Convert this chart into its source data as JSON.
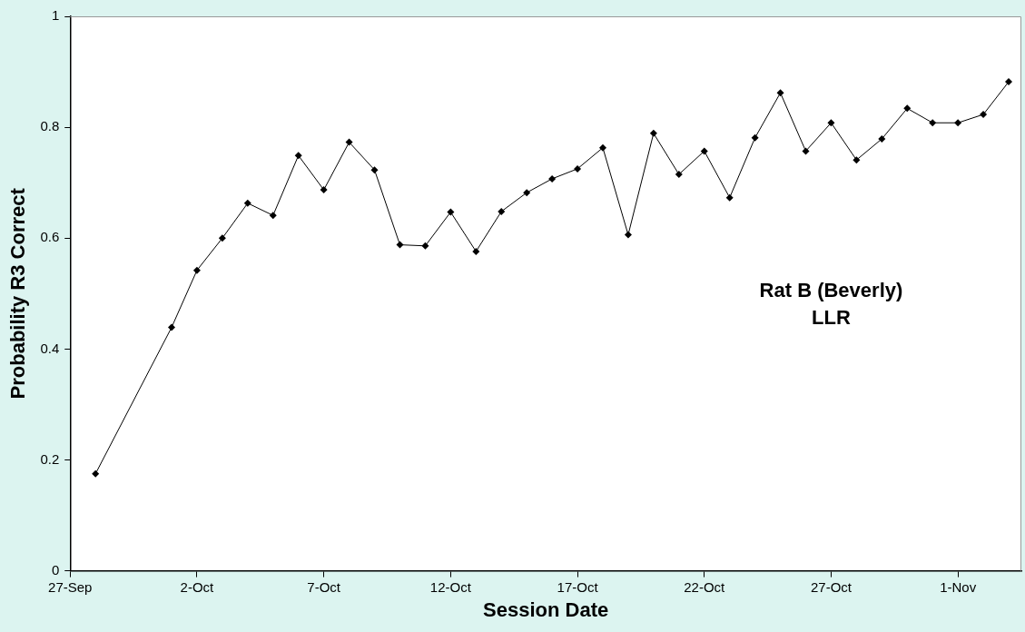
{
  "chart_data": {
    "type": "line",
    "xlabel": "Session Date",
    "ylabel": "Probability R3 Correct",
    "annotations": [
      "Rat B (Beverly)\nLLR"
    ],
    "x": [
      "--09-28",
      "--10-01",
      "--10-02",
      "--10-03",
      "--10-04",
      "--10-05",
      "--10-06",
      "--10-07",
      "--10-08",
      "--10-09",
      "--10-10",
      "--10-11",
      "--10-12",
      "--10-13",
      "--10-14",
      "--10-15",
      "--10-16",
      "--10-17",
      "--10-18",
      "--10-19",
      "--10-20",
      "--10-21",
      "--10-22",
      "--10-23",
      "--10-24",
      "--10-25",
      "--10-26",
      "--10-27",
      "--10-28",
      "--10-29",
      "--10-30",
      "--10-31",
      "--11-01",
      "--11-02",
      "--11-03"
    ],
    "series": [
      {
        "color": "#000000",
        "values": [
          0.175,
          0.439,
          0.542,
          0.6,
          0.663,
          0.641,
          0.749,
          0.687,
          0.773,
          0.723,
          0.588,
          0.586,
          0.647,
          0.576,
          0.648,
          0.682,
          0.707,
          0.725,
          0.763,
          0.606,
          0.789,
          0.715,
          0.757,
          0.673,
          0.781,
          0.862,
          0.757,
          0.808,
          0.741,
          0.779,
          0.834,
          0.808,
          0.808,
          0.823,
          0.882
        ]
      }
    ],
    "xlim": [
      "--09-27",
      "--11-03T12:00"
    ],
    "xticks": [
      {
        "value": "--09-27",
        "label": "27-Sep"
      },
      {
        "value": "--10-02",
        "label": "2-Oct"
      },
      {
        "value": "--10-07",
        "label": "7-Oct"
      },
      {
        "value": "--10-12",
        "label": "12-Oct"
      },
      {
        "value": "--10-17",
        "label": "17-Oct"
      },
      {
        "value": "--10-22",
        "label": "22-Oct"
      },
      {
        "value": "--10-27",
        "label": "27-Oct"
      },
      {
        "value": "--11-01",
        "label": "1-Nov"
      }
    ],
    "ylim": [
      0,
      1
    ],
    "yticks": [
      0,
      0.2,
      0.4,
      0.6,
      0.8,
      1
    ],
    "grid": false,
    "legend": false,
    "marker": "diamond",
    "line_style": "solid"
  }
}
